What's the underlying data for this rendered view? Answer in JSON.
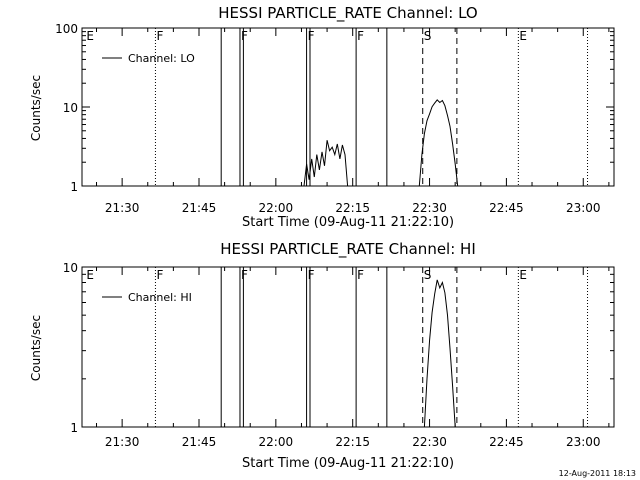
{
  "timestamp": "12-Aug-2011 18:13",
  "chart_data": [
    {
      "type": "line",
      "title": "HESSI PARTICLE_RATE Channel: LO",
      "xlabel": "Start Time (09-Aug-11 21:22:10)",
      "ylabel": "Counts/sec",
      "yscale": "log",
      "xlim": [
        "21:22:10",
        "23:06"
      ],
      "ylim": [
        1,
        100
      ],
      "x_ticks": [
        "21:30",
        "21:45",
        "22:00",
        "22:15",
        "22:30",
        "22:45",
        "23:00"
      ],
      "y_ticks": [
        "1",
        "10",
        "100"
      ],
      "legend": {
        "position": "top-left",
        "entries": [
          "Channel: LO"
        ]
      },
      "grid": false,
      "series": [
        {
          "name": "Channel: LO",
          "x": [
            "22:05:30",
            "22:06:00",
            "22:06:30",
            "22:07:00",
            "22:07:30",
            "22:08:00",
            "22:08:30",
            "22:09:00",
            "22:09:30",
            "22:10:00",
            "22:10:30",
            "22:11:00",
            "22:11:30",
            "22:12:00",
            "22:12:30",
            "22:13:00",
            "22:13:30",
            "22:14:00",
            "22:28:00",
            "22:28:30",
            "22:29:00",
            "22:29:30",
            "22:30:00",
            "22:30:30",
            "22:31:00",
            "22:31:30",
            "22:32:00",
            "22:32:30",
            "22:33:00",
            "22:33:30",
            "22:34:00",
            "22:34:30",
            "22:35:00",
            "22:35:30"
          ],
          "y": [
            1,
            1.9,
            1.2,
            2.2,
            1.3,
            2.5,
            1.6,
            2.7,
            1.8,
            3.8,
            2.8,
            3.1,
            2.5,
            3.4,
            2.2,
            3.3,
            2.5,
            1,
            1,
            2.5,
            4.6,
            6.7,
            8.2,
            10.1,
            11.2,
            12.3,
            11.4,
            12.1,
            10.4,
            7.8,
            5.7,
            3.4,
            1.9,
            1
          ]
        }
      ],
      "markers": [
        {
          "time": "21:22:50",
          "label": "E",
          "style": "none"
        },
        {
          "time": "21:36:30",
          "label": "F",
          "style": "dotted"
        },
        {
          "time": "21:49:20",
          "label": "",
          "style": "solid"
        },
        {
          "time": "21:53:00",
          "label": "F",
          "style": "solid"
        },
        {
          "time": "21:53:40",
          "label": "",
          "style": "solid"
        },
        {
          "time": "22:06:00",
          "label": "F",
          "style": "solid"
        },
        {
          "time": "22:06:40",
          "label": "",
          "style": "solid"
        },
        {
          "time": "22:15:40",
          "label": "F",
          "style": "solid"
        },
        {
          "time": "22:21:40",
          "label": "",
          "style": "solid"
        },
        {
          "time": "22:28:40",
          "label": "S",
          "style": "dashed"
        },
        {
          "time": "22:35:20",
          "label": "",
          "style": "dashed"
        },
        {
          "time": "22:47:20",
          "label": "E",
          "style": "dotted"
        },
        {
          "time": "23:00:50",
          "label": "",
          "style": "dotted"
        }
      ]
    },
    {
      "type": "line",
      "title": "HESSI PARTICLE_RATE Channel: HI",
      "xlabel": "Start Time (09-Aug-11 21:22:10)",
      "ylabel": "Counts/sec",
      "yscale": "log",
      "xlim": [
        "21:22:10",
        "23:06"
      ],
      "ylim": [
        1,
        10
      ],
      "x_ticks": [
        "21:30",
        "21:45",
        "22:00",
        "22:15",
        "22:30",
        "22:45",
        "23:00"
      ],
      "y_ticks": [
        "1",
        "10"
      ],
      "legend": {
        "position": "top-left",
        "entries": [
          "Channel: HI"
        ]
      },
      "grid": false,
      "series": [
        {
          "name": "Channel: HI",
          "x": [
            "22:29:00",
            "22:29:30",
            "22:30:00",
            "22:30:30",
            "22:31:00",
            "22:31:30",
            "22:32:00",
            "22:32:30",
            "22:33:00",
            "22:33:30",
            "22:34:00",
            "22:34:30",
            "22:35:00"
          ],
          "y": [
            1,
            2,
            3.5,
            5.2,
            6.8,
            8.3,
            7.4,
            8.0,
            6.9,
            5.0,
            3.1,
            1.8,
            1
          ]
        }
      ],
      "markers": [
        {
          "time": "21:22:50",
          "label": "E",
          "style": "none"
        },
        {
          "time": "21:36:30",
          "label": "F",
          "style": "dotted"
        },
        {
          "time": "21:49:20",
          "label": "",
          "style": "solid"
        },
        {
          "time": "21:53:00",
          "label": "F",
          "style": "solid"
        },
        {
          "time": "21:53:40",
          "label": "",
          "style": "solid"
        },
        {
          "time": "22:06:00",
          "label": "F",
          "style": "solid"
        },
        {
          "time": "22:06:40",
          "label": "",
          "style": "solid"
        },
        {
          "time": "22:15:40",
          "label": "F",
          "style": "solid"
        },
        {
          "time": "22:21:40",
          "label": "",
          "style": "solid"
        },
        {
          "time": "22:28:40",
          "label": "S",
          "style": "dashed"
        },
        {
          "time": "22:35:20",
          "label": "",
          "style": "dashed"
        },
        {
          "time": "22:47:20",
          "label": "E",
          "style": "dotted"
        },
        {
          "time": "23:00:50",
          "label": "",
          "style": "dotted"
        }
      ]
    }
  ]
}
